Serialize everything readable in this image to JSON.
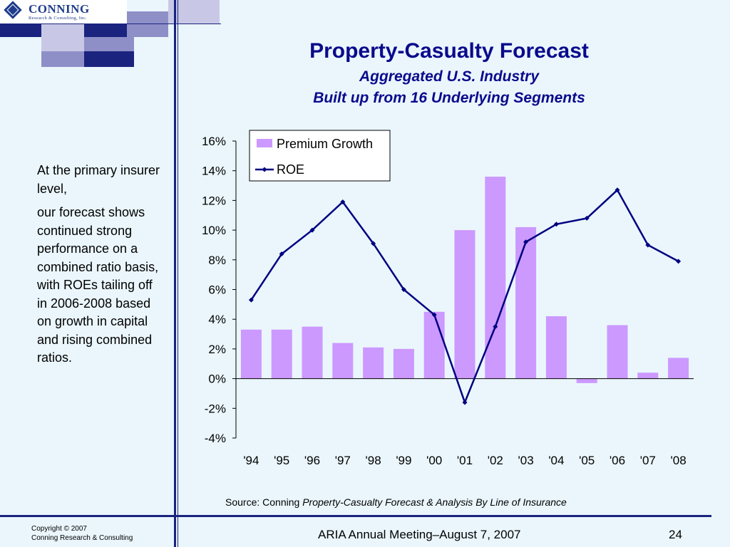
{
  "logo": {
    "name": "CONNING",
    "subtitle": "Research & Consulting, Inc."
  },
  "slide": {
    "title": "Property-Casualty Forecast",
    "subtitle1": "Aggregated U.S. Industry",
    "subtitle2": "Built up from 16 Underlying Segments",
    "side_text_1": "At the primary insurer level,",
    "side_text_2": "our forecast shows continued strong performance on a combined ratio basis, with ROEs tailing off in 2006-2008 based on growth in capital and rising combined ratios.",
    "source_prefix": "Source: Conning",
    "source_italic": "Property-Casualty Forecast & Analysis By Line of Insurance",
    "copyright_line1": "Copyright © 2007",
    "copyright_line2": "Conning Research & Consulting",
    "footer": "ARIA Annual Meeting–August 7, 2007",
    "page_number": "24"
  },
  "colors": {
    "bar": "#cc99ff",
    "line": "#000080",
    "title": "#0a0a8c",
    "background": "#eaf6fc"
  },
  "chart_data": {
    "type": "bar",
    "categories": [
      "'94",
      "'95",
      "'96",
      "'97",
      "'98",
      "'99",
      "'00",
      "'01",
      "'02",
      "'03",
      "'04",
      "'05",
      "'06",
      "'07",
      "'08"
    ],
    "series": [
      {
        "name": "Premium Growth",
        "type": "bar",
        "values": [
          3.3,
          3.3,
          3.5,
          2.4,
          2.1,
          2.0,
          4.5,
          10.0,
          13.6,
          10.2,
          4.2,
          -0.3,
          3.6,
          0.4,
          1.4
        ]
      },
      {
        "name": "ROE",
        "type": "line",
        "values": [
          5.3,
          8.4,
          10.0,
          11.9,
          9.1,
          6.0,
          4.3,
          -1.6,
          3.5,
          9.2,
          10.4,
          10.8,
          12.7,
          9.0,
          7.9
        ]
      }
    ],
    "y_ticks": [
      "16%",
      "14%",
      "12%",
      "10%",
      "8%",
      "6%",
      "4%",
      "2%",
      "0%",
      "-2%",
      "-4%"
    ],
    "ylim": [
      -4,
      16
    ],
    "legend_position": "top-left inside plot",
    "grid": false
  }
}
